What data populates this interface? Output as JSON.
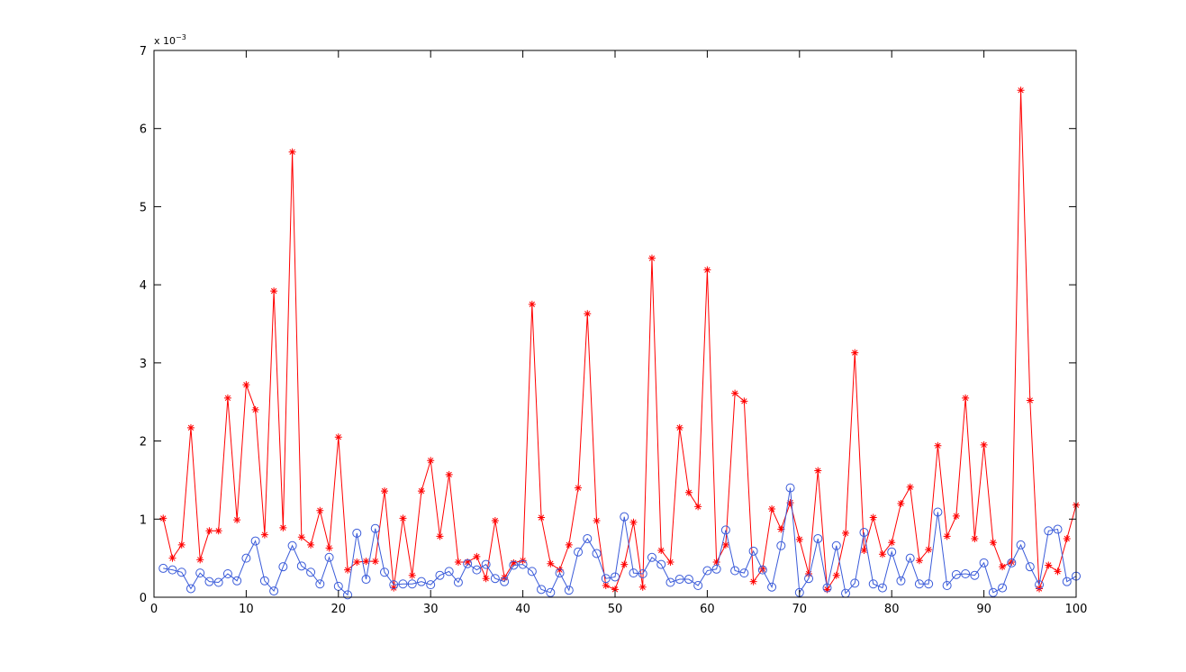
{
  "chart_data": {
    "type": "line",
    "title": "",
    "xlabel": "",
    "ylabel": "",
    "xlim": [
      0,
      100
    ],
    "ylim": [
      0,
      7
    ],
    "y_exponent_label": "x 10",
    "y_exponent_power": "−3",
    "grid": false,
    "legend": "none",
    "xticks": [
      "0",
      "10",
      "20",
      "30",
      "40",
      "50",
      "60",
      "70",
      "80",
      "90",
      "100"
    ],
    "yticks": [
      "0",
      "1",
      "2",
      "3",
      "4",
      "5",
      "6",
      "7"
    ],
    "x": [
      1,
      2,
      3,
      4,
      5,
      6,
      7,
      8,
      9,
      10,
      11,
      12,
      13,
      14,
      15,
      16,
      17,
      18,
      19,
      20,
      21,
      22,
      23,
      24,
      25,
      26,
      27,
      28,
      29,
      30,
      31,
      32,
      33,
      34,
      35,
      36,
      37,
      38,
      39,
      40,
      41,
      42,
      43,
      44,
      45,
      46,
      47,
      48,
      49,
      50,
      51,
      52,
      53,
      54,
      55,
      56,
      57,
      58,
      59,
      60,
      61,
      62,
      63,
      64,
      65,
      66,
      67,
      68,
      69,
      70,
      71,
      72,
      73,
      74,
      75,
      76,
      77,
      78,
      79,
      80,
      81,
      82,
      83,
      84,
      85,
      86,
      87,
      88,
      89,
      90,
      91,
      92,
      93,
      94,
      95,
      96,
      97,
      98,
      99,
      100
    ],
    "series": [
      {
        "color": "#ff0000",
        "marker": "asterisk",
        "values": [
          1.01,
          0.5,
          0.67,
          2.17,
          0.48,
          0.85,
          0.85,
          2.55,
          0.99,
          2.72,
          2.4,
          0.8,
          3.92,
          0.89,
          5.7,
          0.77,
          0.67,
          1.11,
          0.63,
          2.05,
          0.35,
          0.45,
          0.46,
          0.46,
          1.36,
          0.12,
          1.01,
          0.28,
          1.36,
          1.75,
          0.78,
          1.57,
          0.45,
          0.45,
          0.52,
          0.24,
          0.98,
          0.25,
          0.44,
          0.47,
          3.75,
          1.02,
          0.43,
          0.35,
          0.67,
          1.4,
          3.63,
          0.98,
          0.15,
          0.1,
          0.42,
          0.96,
          0.13,
          4.34,
          0.6,
          0.45,
          2.17,
          1.34,
          1.16,
          4.19,
          0.45,
          0.67,
          2.61,
          2.51,
          0.2,
          0.36,
          1.13,
          0.87,
          1.21,
          0.74,
          0.3,
          1.62,
          0.1,
          0.28,
          0.82,
          3.13,
          0.6,
          1.02,
          0.55,
          0.7,
          1.2,
          1.41,
          0.47,
          0.61,
          1.94,
          0.78,
          1.04,
          2.55,
          0.75,
          1.95,
          0.7,
          0.39,
          0.45,
          6.49,
          2.52,
          0.11,
          0.41,
          0.33,
          0.75,
          1.18
        ]
      },
      {
        "color": "#3a5bd9",
        "marker": "circle",
        "values": [
          0.37,
          0.35,
          0.32,
          0.11,
          0.31,
          0.2,
          0.19,
          0.3,
          0.21,
          0.5,
          0.72,
          0.21,
          0.08,
          0.39,
          0.66,
          0.4,
          0.32,
          0.17,
          0.51,
          0.14,
          0.03,
          0.82,
          0.23,
          0.88,
          0.32,
          0.16,
          0.17,
          0.17,
          0.2,
          0.16,
          0.28,
          0.33,
          0.19,
          0.43,
          0.35,
          0.42,
          0.24,
          0.2,
          0.41,
          0.42,
          0.33,
          0.1,
          0.06,
          0.31,
          0.09,
          0.58,
          0.75,
          0.56,
          0.24,
          0.26,
          1.03,
          0.31,
          0.3,
          0.51,
          0.42,
          0.19,
          0.23,
          0.23,
          0.15,
          0.34,
          0.36,
          0.86,
          0.34,
          0.31,
          0.59,
          0.35,
          0.13,
          0.66,
          1.4,
          0.06,
          0.24,
          0.75,
          0.12,
          0.66,
          0.05,
          0.18,
          0.83,
          0.17,
          0.12,
          0.58,
          0.21,
          0.5,
          0.17,
          0.17,
          1.09,
          0.15,
          0.29,
          0.3,
          0.28,
          0.44,
          0.06,
          0.12,
          0.44,
          0.67,
          0.39,
          0.16,
          0.85,
          0.87,
          0.2,
          0.27
        ]
      }
    ]
  }
}
